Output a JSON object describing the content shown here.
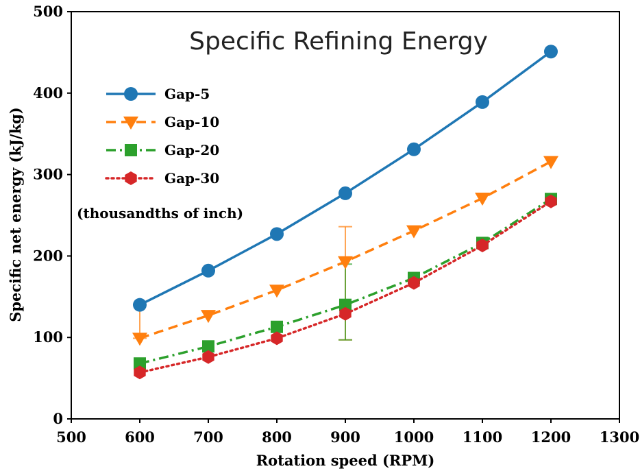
{
  "chart_data": {
    "type": "line",
    "title": "Specific Refining Energy",
    "xlabel": "Rotation speed (RPM)",
    "ylabel": "Specific net energy (kJ/kg)",
    "xlim": [
      500,
      1300
    ],
    "ylim": [
      0,
      500
    ],
    "xticks": [
      500,
      600,
      700,
      800,
      900,
      1000,
      1100,
      1200,
      1300
    ],
    "yticks": [
      0,
      100,
      200,
      300,
      400,
      500
    ],
    "grid": false,
    "legend_position": "top-left",
    "annotation": "(thousandths of inch)",
    "x": [
      600,
      700,
      800,
      900,
      1000,
      1100,
      1200
    ],
    "series": [
      {
        "name": "Gap-5",
        "values": [
          140,
          182,
          227,
          277,
          331,
          389,
          451
        ],
        "color": "#1f77b4",
        "dash": "solid",
        "marker": "circle"
      },
      {
        "name": "Gap-10",
        "values": [
          99,
          127,
          158,
          193,
          231,
          271,
          316
        ],
        "color": "#ff7f0e",
        "dash": "dashed",
        "marker": "triangle-down"
      },
      {
        "name": "Gap-20",
        "values": [
          68,
          89,
          113,
          140,
          173,
          216,
          270
        ],
        "color": "#2ca02c",
        "dash": "dashdot",
        "marker": "square"
      },
      {
        "name": "Gap-30",
        "values": [
          57,
          76,
          99,
          129,
          167,
          213,
          267
        ],
        "color": "#d62728",
        "dash": "dotted",
        "marker": "hexagon"
      }
    ],
    "error_bars": [
      {
        "series": "Gap-10",
        "x": 600,
        "low": 99,
        "high": 140,
        "color": "#ff7f0e"
      },
      {
        "series": "Gap-10",
        "x": 900,
        "low": 97,
        "high": 236,
        "color": "#ff7f0e"
      },
      {
        "series": "Gap-20",
        "x": 900,
        "low": 97,
        "high": 190,
        "color": "#2ca02c"
      }
    ]
  }
}
